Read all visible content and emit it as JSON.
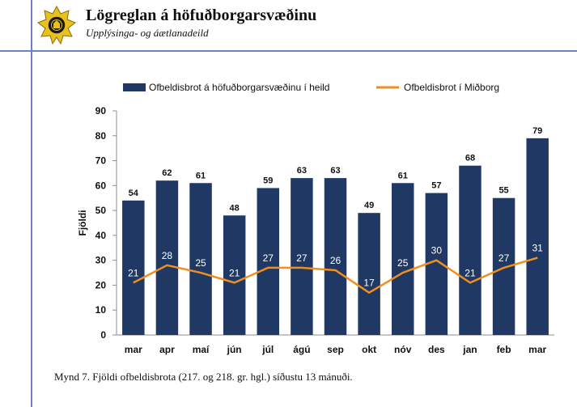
{
  "header": {
    "org_name": "Lögreglan á höfuðborgarsvæðinu",
    "department": "Upplýsinga- og áætlanadeild",
    "logo_icon": "police-star-badge-icon"
  },
  "caption": "Mynd 7. Fjöldi ofbeldisbrota (217. og 218. gr. hgl.) síðustu 13 mánuði.",
  "colors": {
    "accent_lines": "#6b82c9",
    "bar": "#1f3864",
    "line": "#f28e1c",
    "logo_gold": "#e8c020"
  },
  "chart_data": {
    "type": "bar",
    "categories": [
      "mar",
      "apr",
      "maí",
      "jún",
      "júl",
      "ágú",
      "sep",
      "okt",
      "nóv",
      "des",
      "jan",
      "feb",
      "mar"
    ],
    "series": [
      {
        "name": "Ofbeldisbrot á höfuðborgarsvæðinu í heild",
        "type": "bar",
        "color": "#1f3864",
        "values": [
          54,
          62,
          61,
          48,
          59,
          63,
          63,
          49,
          61,
          57,
          68,
          55,
          79
        ]
      },
      {
        "name": "Ofbeldisbrot í Miðborg",
        "type": "line",
        "color": "#f28e1c",
        "values": [
          21,
          28,
          25,
          21,
          27,
          27,
          26,
          17,
          25,
          30,
          21,
          27,
          31
        ]
      }
    ],
    "ylabel": "Fjöldi",
    "xlabel": "",
    "ylim": [
      0,
      90
    ],
    "yticks": [
      0,
      10,
      20,
      30,
      40,
      50,
      60,
      70,
      80,
      90
    ],
    "legend_position": "top",
    "grid": false
  }
}
